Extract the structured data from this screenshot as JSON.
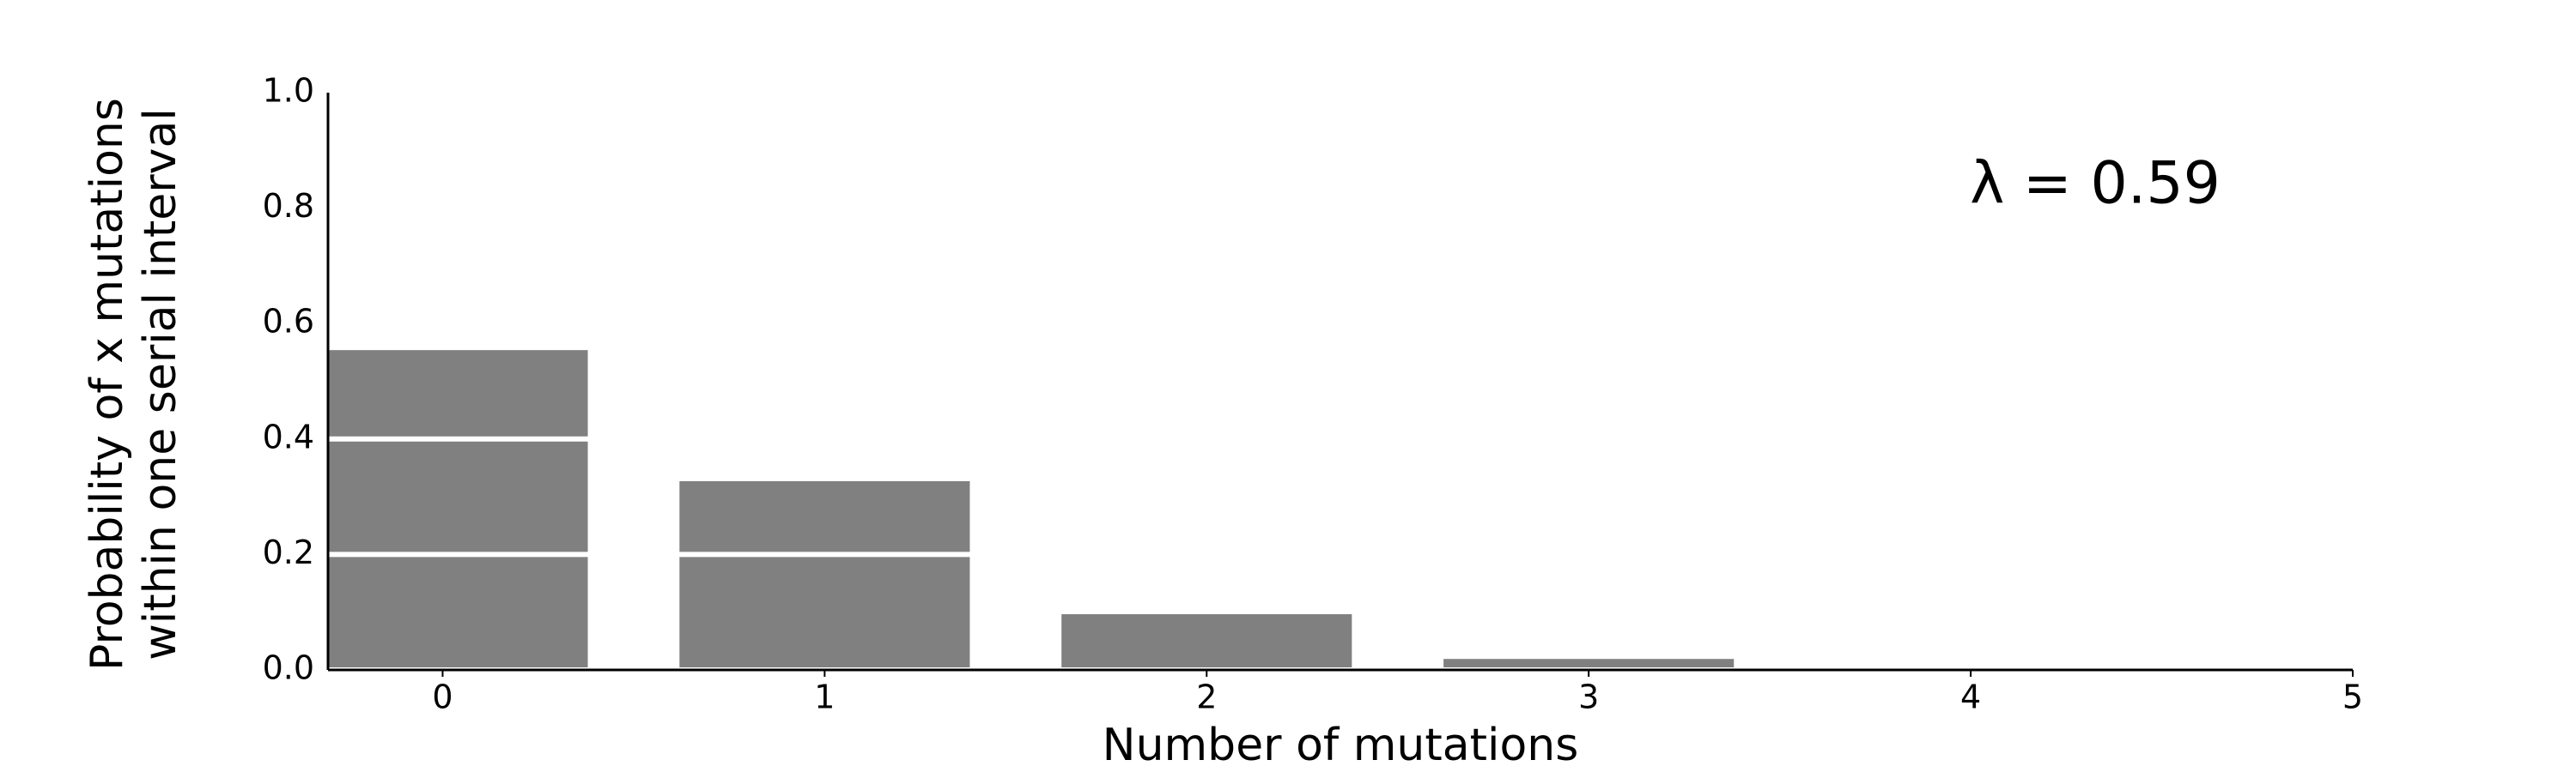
{
  "chart_data": {
    "type": "bar",
    "x": [
      0,
      1,
      2,
      3,
      4
    ],
    "values": [
      0.554,
      0.327,
      0.0965,
      0.019,
      0.0028
    ],
    "color": "#808080",
    "xlabel": "Number of mutations",
    "ylabel": [
      "Probability of x mutations",
      "within one serial interval"
    ],
    "annotation": "λ = 0.59",
    "xlim": [
      -0.3,
      5
    ],
    "xticks": [
      0,
      1,
      2,
      3,
      4,
      5
    ],
    "ylim": [
      0,
      1
    ],
    "yticks": [
      {
        "value": 0,
        "label": "0.0"
      },
      0.2,
      0.4,
      0.6,
      0.8,
      {
        "value": 1,
        "label": "1.0"
      }
    ],
    "grid": true,
    "grid_color": "#ffffff"
  }
}
